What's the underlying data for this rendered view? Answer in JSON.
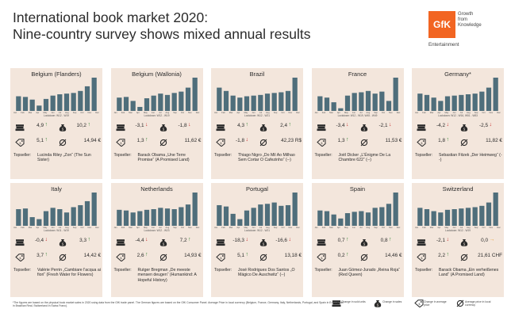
{
  "title_line1": "International book market 2020:",
  "title_line2": "Nine-country survey shows mixed annual results",
  "logo": {
    "mark": "GfK",
    "text1": "Growth",
    "text2": "from",
    "text3": "Knowledge",
    "sub": "Entertainment",
    "color": "#f26522"
  },
  "months": [
    "Jan",
    "Feb",
    "Mar",
    "Apr",
    "May",
    "Jun",
    "Jul",
    "Aug",
    "Sep",
    "Oct",
    "Nov",
    "Dec"
  ],
  "topseller_label": "Topseller:",
  "colors": {
    "panel": "#f3e6dc",
    "bar": "#4f6e7b",
    "up": "#3a8a3a",
    "down": "#c8312f",
    "flat": "#e8a23a"
  },
  "chart_data": [
    {
      "type": "bar",
      "title": "Belgium (Flanders)",
      "lockdown": "Lockdown: W12 - W19",
      "categories": [
        "Jan",
        "Feb",
        "Mar",
        "Apr",
        "May",
        "Jun",
        "Jul",
        "Aug",
        "Sep",
        "Oct",
        "Nov",
        "Dec"
      ],
      "values": [
        44,
        42,
        34,
        16,
        36,
        46,
        50,
        52,
        54,
        60,
        74,
        100
      ],
      "ylim": [
        0,
        100
      ],
      "revenue": "4,9",
      "revenue_dir": "up",
      "units": "10,2",
      "units_dir": "up",
      "price_change": "5,1",
      "price_dir": "up",
      "avg_price": "14,94 €",
      "topseller": "Lucinda Riley „Zon“ (The Sun Sister)"
    },
    {
      "type": "bar",
      "title": "Belgium (Wallonia)",
      "lockdown": "Lockdown: W12 - W19",
      "categories": [
        "Jan",
        "Feb",
        "Mar",
        "Apr",
        "May",
        "Jun",
        "Jul",
        "Aug",
        "Sep",
        "Oct",
        "Nov",
        "Dec"
      ],
      "values": [
        40,
        42,
        30,
        12,
        38,
        46,
        52,
        48,
        54,
        58,
        70,
        100
      ],
      "ylim": [
        0,
        100
      ],
      "revenue": "-3,1",
      "revenue_dir": "down",
      "units": "-1,8",
      "units_dir": "down",
      "price_change": "1,3",
      "price_dir": "up",
      "avg_price": "11,62 €",
      "topseller": "Barack Obama „Une Terre Promise“ (A Promised Land)"
    },
    {
      "type": "bar",
      "title": "Brazil",
      "lockdown": "Lockdown: W12 - W21",
      "categories": [
        "Jan",
        "Feb",
        "Mar",
        "Apr",
        "May",
        "Jun",
        "Jul",
        "Aug",
        "Sep",
        "Oct",
        "Nov",
        "Dec"
      ],
      "values": [
        70,
        60,
        46,
        40,
        44,
        46,
        48,
        52,
        54,
        56,
        60,
        100
      ],
      "ylim": [
        0,
        100
      ],
      "revenue": "4,3",
      "revenue_dir": "up",
      "units": "2,4",
      "units_dir": "up",
      "price_change": "-1,8",
      "price_dir": "down",
      "avg_price": "42,23 R$",
      "topseller": "Thiago Nigro „Do Mil Ao Milhao Sem Cortar O Cafezinho“ (--)"
    },
    {
      "type": "bar",
      "title": "France",
      "lockdown": "Lockdown: W12 - W19, W45 - W49",
      "categories": [
        "Jan",
        "Feb",
        "Mar",
        "Apr",
        "May",
        "Jun",
        "Jul",
        "Aug",
        "Sep",
        "Oct",
        "Nov",
        "Dec"
      ],
      "values": [
        44,
        40,
        26,
        8,
        46,
        54,
        56,
        60,
        52,
        58,
        30,
        100
      ],
      "ylim": [
        0,
        100
      ],
      "revenue": "-3,4",
      "revenue_dir": "down",
      "units": "-2,1",
      "units_dir": "down",
      "price_change": "1,3",
      "price_dir": "up",
      "avg_price": "11,53 €",
      "topseller": "Joël Dicker „L'Énigme De La Chambre 622“ (--)"
    },
    {
      "type": "bar",
      "title": "Germany*",
      "lockdown": "Lockdown: W12 - W16, W51 - W53",
      "categories": [
        "Jan",
        "Feb",
        "Mar",
        "Apr",
        "May",
        "Jun",
        "Jul",
        "Aug",
        "Sep",
        "Oct",
        "Nov",
        "Dec"
      ],
      "values": [
        52,
        48,
        40,
        30,
        44,
        46,
        48,
        50,
        52,
        58,
        70,
        100
      ],
      "ylim": [
        0,
        100
      ],
      "revenue": "-4,2",
      "revenue_dir": "down",
      "units": "-2,5",
      "units_dir": "down",
      "price_change": "1,8",
      "price_dir": "up",
      "avg_price": "11,82 €",
      "topseller": "Sebastian Fitzek „Der Heimweg“ (--)"
    },
    {
      "type": "bar",
      "title": "Italy",
      "lockdown": "Lockdown: W11 - W19",
      "categories": [
        "Jan",
        "Feb",
        "Mar",
        "Apr",
        "May",
        "Jun",
        "Jul",
        "Aug",
        "Sep",
        "Oct",
        "Nov",
        "Dec"
      ],
      "values": [
        50,
        52,
        26,
        20,
        44,
        54,
        50,
        40,
        56,
        62,
        74,
        100
      ],
      "ylim": [
        0,
        100
      ],
      "revenue": "-0,4",
      "revenue_dir": "down",
      "units": "3,3",
      "units_dir": "up",
      "price_change": "3,7",
      "price_dir": "up",
      "avg_price": "14,42 €",
      "topseller": "Valérie Perrin „Cambiare l'acqua ai fiori“ (Fresh Water for Flowers)"
    },
    {
      "type": "bar",
      "title": "Netherlands",
      "lockdown": "Lockdown: W12 - W23",
      "categories": [
        "Jan",
        "Feb",
        "Mar",
        "Apr",
        "May",
        "Jun",
        "Jul",
        "Aug",
        "Sep",
        "Oct",
        "Nov",
        "Dec"
      ],
      "values": [
        48,
        46,
        40,
        44,
        48,
        50,
        54,
        52,
        50,
        56,
        64,
        100
      ],
      "ylim": [
        0,
        100
      ],
      "revenue": "-4,4",
      "revenue_dir": "down",
      "units": "7,2",
      "units_dir": "up",
      "price_change": "2,6",
      "price_dir": "up",
      "avg_price": "14,93 €",
      "topseller": "Rutger Bregman „De meeste mensen deugen“ (Humankind: A Hopeful History)"
    },
    {
      "type": "bar",
      "title": "Portugal",
      "lockdown": "Lockdown: W12 - W21",
      "categories": [
        "Jan",
        "Feb",
        "Mar",
        "Apr",
        "May",
        "Jun",
        "Jul",
        "Aug",
        "Sep",
        "Oct",
        "Nov",
        "Dec"
      ],
      "values": [
        62,
        58,
        36,
        20,
        46,
        54,
        64,
        66,
        70,
        60,
        62,
        100
      ],
      "ylim": [
        0,
        100
      ],
      "revenue": "-18,3",
      "revenue_dir": "down",
      "units": "-16,6",
      "units_dir": "down",
      "price_change": "5,1",
      "price_dir": "up",
      "avg_price": "13,18 €",
      "topseller": "José Rodrigues Dos Santos „O Mágico De Auschwitz“ (--)"
    },
    {
      "type": "bar",
      "title": "Spain",
      "lockdown": "",
      "categories": [
        "Jan",
        "Feb",
        "Mar",
        "Apr",
        "May",
        "Jun",
        "Jul",
        "Aug",
        "Sep",
        "Oct",
        "Nov",
        "Dec"
      ],
      "values": [
        46,
        44,
        34,
        22,
        38,
        42,
        44,
        40,
        54,
        56,
        66,
        100
      ],
      "ylim": [
        0,
        100
      ],
      "revenue": "0,7",
      "revenue_dir": "up",
      "units": "0,8",
      "units_dir": "up",
      "price_change": "0,2",
      "price_dir": "up",
      "avg_price": "14,46 €",
      "topseller": "Juan Gómez-Jurado „Reina Roja“ (Red Queen)"
    },
    {
      "type": "bar",
      "title": "Switzerland",
      "lockdown": "Lockdown: W12 - W19",
      "categories": [
        "Jan",
        "Feb",
        "Mar",
        "Apr",
        "May",
        "Jun",
        "Jul",
        "Aug",
        "Sep",
        "Oct",
        "Nov",
        "Dec"
      ],
      "values": [
        54,
        50,
        44,
        40,
        48,
        50,
        52,
        54,
        56,
        60,
        70,
        100
      ],
      "ylim": [
        0,
        100
      ],
      "revenue": "-2,1",
      "revenue_dir": "down",
      "units": "0,0",
      "units_dir": "flat",
      "price_change": "2,2",
      "price_dir": "up",
      "avg_price": "21,61 CHF",
      "topseller": "Barack Obama „Ein verheißenes Land“ (A Promised Land)"
    }
  ],
  "footnote": "*The figures are based on the physical book market sales in 2020 using data from the GfK trade panel. The German figures are based on the GfK Consumer Panel. Average Price in local currency (Belgium, France, Germany, Italy, Netherlands, Portugal, and Spain in Euro, Brazil in Brazilian Real, Switzerland in Swiss Franc).",
  "legend": [
    {
      "icon": "books-icon",
      "label": "Change in sold units"
    },
    {
      "icon": "money-bag-icon",
      "label": "Change in sales"
    },
    {
      "icon": "price-tag-icon",
      "label": "Change in average price"
    },
    {
      "icon": "average-icon",
      "label": "Average price in local currency"
    }
  ]
}
